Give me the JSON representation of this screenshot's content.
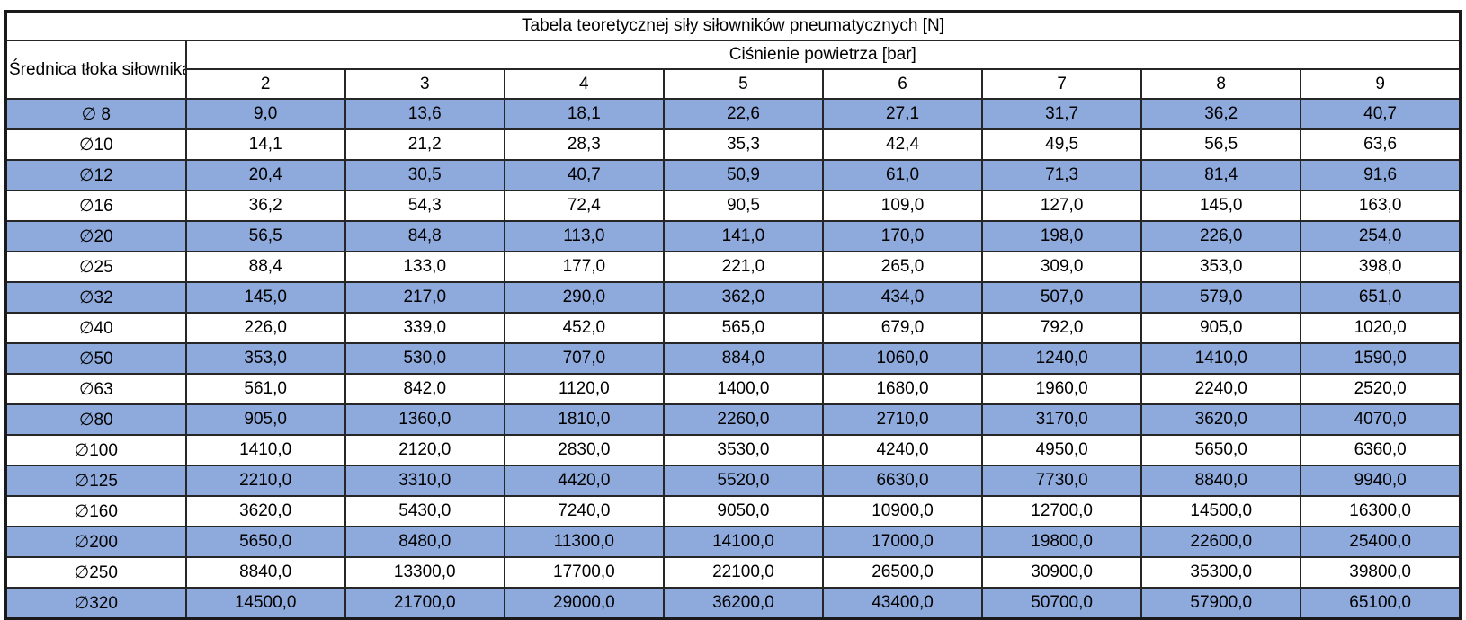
{
  "chart_data": {
    "type": "table",
    "title": "Tabela teoretycznej siły siłowników pneumatycznych [N]",
    "row_header": "Średnica tłoka siłownika",
    "column_group_header": "Ciśnienie powietrza [bar]",
    "pressures_bar": [
      2,
      3,
      4,
      5,
      6,
      7,
      8,
      9
    ],
    "rows": [
      {
        "diameter": "∅ 8",
        "forces": [
          9.0,
          13.6,
          18.1,
          22.6,
          27.1,
          31.7,
          36.2,
          40.7
        ]
      },
      {
        "diameter": "∅10",
        "forces": [
          14.1,
          21.2,
          28.3,
          35.3,
          42.4,
          49.5,
          56.5,
          63.6
        ]
      },
      {
        "diameter": "∅12",
        "forces": [
          20.4,
          30.5,
          40.7,
          50.9,
          61.0,
          71.3,
          81.4,
          91.6
        ]
      },
      {
        "diameter": "∅16",
        "forces": [
          36.2,
          54.3,
          72.4,
          90.5,
          109.0,
          127.0,
          145.0,
          163.0
        ]
      },
      {
        "diameter": "∅20",
        "forces": [
          56.5,
          84.8,
          113.0,
          141.0,
          170.0,
          198.0,
          226.0,
          254.0
        ]
      },
      {
        "diameter": "∅25",
        "forces": [
          88.4,
          133.0,
          177.0,
          221.0,
          265.0,
          309.0,
          353.0,
          398.0
        ]
      },
      {
        "diameter": "∅32",
        "forces": [
          145.0,
          217.0,
          290.0,
          362.0,
          434.0,
          507.0,
          579.0,
          651.0
        ]
      },
      {
        "diameter": "∅40",
        "forces": [
          226.0,
          339.0,
          452.0,
          565.0,
          679.0,
          792.0,
          905.0,
          1020.0
        ]
      },
      {
        "diameter": "∅50",
        "forces": [
          353.0,
          530.0,
          707.0,
          884.0,
          1060.0,
          1240.0,
          1410.0,
          1590.0
        ]
      },
      {
        "diameter": "∅63",
        "forces": [
          561.0,
          842.0,
          1120.0,
          1400.0,
          1680.0,
          1960.0,
          2240.0,
          2520.0
        ]
      },
      {
        "diameter": "∅80",
        "forces": [
          905.0,
          1360.0,
          1810.0,
          2260.0,
          2710.0,
          3170.0,
          3620.0,
          4070.0
        ]
      },
      {
        "diameter": "∅100",
        "forces": [
          1410.0,
          2120.0,
          2830.0,
          3530.0,
          4240.0,
          4950.0,
          5650.0,
          6360.0
        ]
      },
      {
        "diameter": "∅125",
        "forces": [
          2210.0,
          3310.0,
          4420.0,
          5520.0,
          6630.0,
          7730.0,
          8840.0,
          9940.0
        ]
      },
      {
        "diameter": "∅160",
        "forces": [
          3620.0,
          5430.0,
          7240.0,
          9050.0,
          10900.0,
          12700.0,
          14500.0,
          16300.0
        ]
      },
      {
        "diameter": "∅200",
        "forces": [
          5650.0,
          8480.0,
          11300.0,
          14100.0,
          17000.0,
          19800.0,
          22600.0,
          25400.0
        ]
      },
      {
        "diameter": "∅250",
        "forces": [
          8840.0,
          13300.0,
          17700.0,
          22100.0,
          26500.0,
          30900.0,
          35300.0,
          39800.0
        ]
      },
      {
        "diameter": "∅320",
        "forces": [
          14500.0,
          21700.0,
          29000.0,
          36200.0,
          43400.0,
          50700.0,
          57900.0,
          65100.0
        ]
      }
    ],
    "decimal_separator": ",",
    "banding": {
      "banded_row_color": "#8ea9db",
      "plain_row_color": "#ffffff",
      "first_row_banded": true
    },
    "layout": {
      "grid": true,
      "border_color": "#1a1a1a"
    }
  }
}
